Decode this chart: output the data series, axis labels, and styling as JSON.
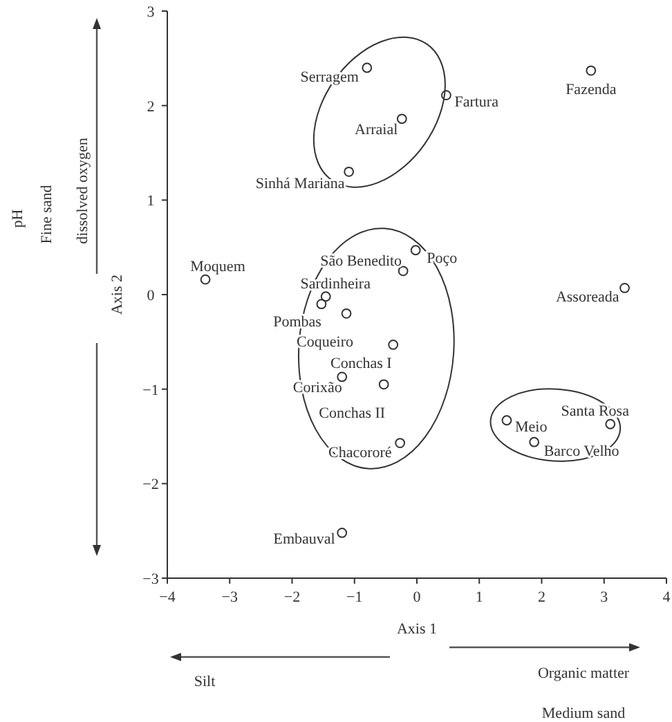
{
  "chart_data": {
    "type": "scatter",
    "xlabel": "Axis 1",
    "ylabel": "Axis 2",
    "xlim": [
      -4,
      4
    ],
    "xticks": [
      -4,
      -3,
      -2,
      -1,
      0,
      1,
      2,
      3,
      4
    ],
    "ylim": [
      -3,
      3
    ],
    "yticks": [
      {
        "value": -3,
        "label": "−3"
      },
      {
        "value": -2,
        "label": "−2"
      },
      {
        "value": -1,
        "label": "−1"
      },
      0,
      1,
      2,
      3
    ],
    "marker": "circle",
    "grid": false,
    "series": [
      {
        "color": "#333333",
        "x": [
          -0.8,
          0.47,
          -0.24,
          -1.09,
          2.79,
          -3.39,
          -0.22,
          -0.02,
          -1.46,
          -1.53,
          -1.13,
          -0.38,
          -1.2,
          -0.53,
          -0.27,
          1.44,
          1.88,
          3.1,
          3.33,
          -1.2
        ],
        "values": [
          2.4,
          2.11,
          1.86,
          1.3,
          2.37,
          0.16,
          0.25,
          0.47,
          -0.02,
          -0.1,
          -0.2,
          -0.53,
          -0.87,
          -0.95,
          -1.57,
          -1.33,
          -1.56,
          -1.37,
          0.07,
          -2.52
        ]
      }
    ],
    "annotations": [
      {
        "text": "Serragem",
        "x": -0.8,
        "y": 2.4
      },
      {
        "text": "Fartura",
        "x": 0.47,
        "y": 2.11
      },
      {
        "text": "Arraial",
        "x": -0.24,
        "y": 1.86
      },
      {
        "text": "Sinhá Mariana",
        "x": -1.09,
        "y": 1.3
      },
      {
        "text": "Fazenda",
        "x": 2.79,
        "y": 2.37
      },
      {
        "text": "Moquem",
        "x": -3.39,
        "y": 0.16
      },
      {
        "text": "São Benedito",
        "x": -0.22,
        "y": 0.25
      },
      {
        "text": "Poço",
        "x": -0.02,
        "y": 0.47
      },
      {
        "text": "Sardinheira",
        "x": -1.46,
        "y": -0.02
      },
      {
        "text": "Pombas",
        "x": -1.53,
        "y": -0.1
      },
      {
        "text": "Coqueiro",
        "x": -1.13,
        "y": -0.2
      },
      {
        "text": "Conchas I",
        "x": -0.38,
        "y": -0.53
      },
      {
        "text": "Corixão",
        "x": -1.2,
        "y": -0.87
      },
      {
        "text": "Conchas II",
        "x": -0.53,
        "y": -0.95
      },
      {
        "text": "Chacororé",
        "x": -0.27,
        "y": -1.57
      },
      {
        "text": "Meio",
        "x": 1.44,
        "y": -1.33
      },
      {
        "text": "Barco Velho",
        "x": 1.88,
        "y": -1.56
      },
      {
        "text": "Santa Rosa",
        "x": 3.1,
        "y": -1.37
      },
      {
        "text": "Assoreada",
        "x": 3.33,
        "y": 0.07
      },
      {
        "text": "Embauval",
        "x": -1.2,
        "y": -2.52
      },
      "pH",
      "Fine sand",
      "dissolved oxygen",
      "Silt",
      "Organic matter",
      "Medium sand"
    ]
  }
}
